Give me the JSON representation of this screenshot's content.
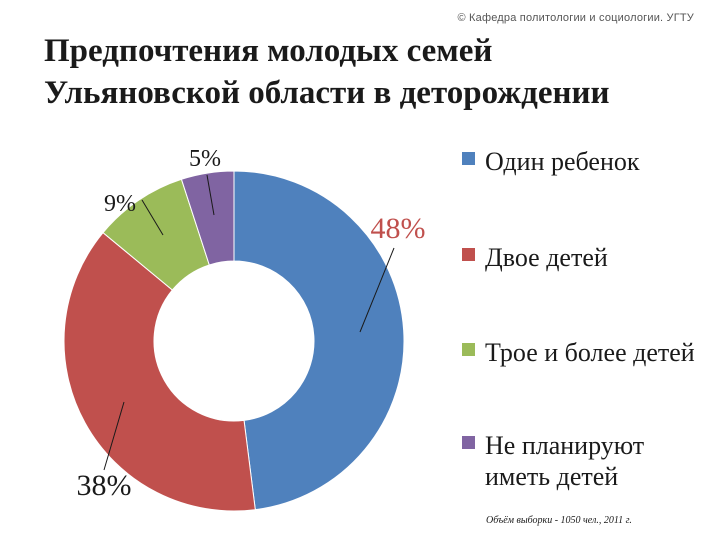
{
  "header": {
    "copyright": "© Кафедра политологии и социологии. УГТУ",
    "title_line1": "Предпочтения молодых семей",
    "title_line2": "Ульяновской области в деторождении"
  },
  "footnote": "Объём выборки - 1050 чел., 2011 г.",
  "chart_data": {
    "type": "pie",
    "variant": "donut",
    "title": "Предпочтения молодых семей Ульяновской области в деторождении",
    "legend_position": "right",
    "slices": [
      {
        "name": "Один ребенок",
        "value": 48,
        "label": "48%",
        "color": "#4f81bd"
      },
      {
        "name": "Двое детей",
        "value": 38,
        "label": "38%",
        "color": "#c0504d"
      },
      {
        "name": "Трое и более детей",
        "value": 9,
        "label": "9%",
        "color": "#9bbb59"
      },
      {
        "name": "Не планируют иметь детей",
        "value": 5,
        "label": "5%",
        "color": "#8064a2"
      }
    ]
  }
}
